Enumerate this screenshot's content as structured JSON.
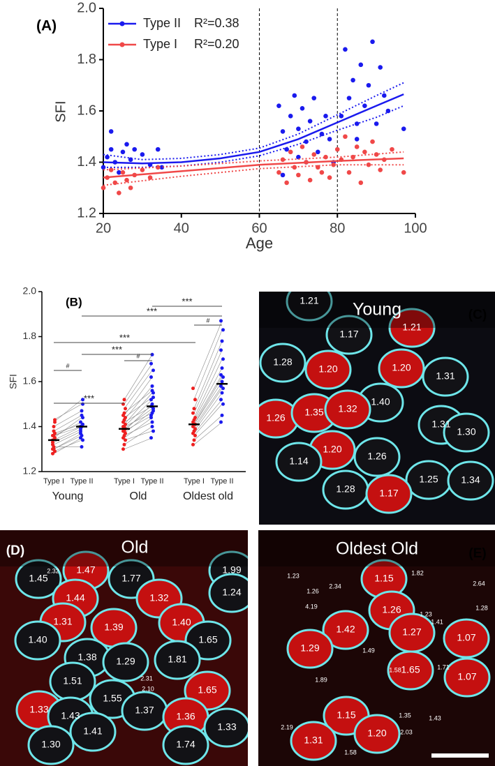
{
  "chart_data": [
    {
      "type": "scatter",
      "panel": "(A)",
      "xlabel": "Age",
      "ylabel": "SFI",
      "xlim": [
        20,
        100
      ],
      "ylim": [
        1.2,
        2.0
      ],
      "xticks": [
        20,
        40,
        60,
        80,
        100
      ],
      "yticks": [
        1.2,
        1.4,
        1.6,
        1.8,
        {
          "value": 2,
          "label": "2.0"
        }
      ],
      "vlines": [
        60,
        80
      ],
      "series": [
        {
          "name": "Type II",
          "annotation": "R²=0.38",
          "color": "#1a1aee",
          "x": [
            20,
            21,
            22,
            22,
            23,
            24,
            25,
            26,
            27,
            28,
            30,
            32,
            34,
            35,
            65,
            66,
            67,
            68,
            69,
            70,
            70,
            71,
            72,
            73,
            74,
            75,
            76,
            77,
            78,
            79,
            81,
            82,
            83,
            84,
            85,
            85,
            86,
            87,
            88,
            89,
            90,
            91,
            92,
            93,
            97,
            66,
            72
          ],
          "values": [
            1.38,
            1.42,
            1.52,
            1.45,
            1.4,
            1.36,
            1.44,
            1.47,
            1.41,
            1.45,
            1.43,
            1.39,
            1.45,
            1.38,
            1.62,
            1.52,
            1.45,
            1.58,
            1.66,
            1.42,
            1.53,
            1.61,
            1.48,
            1.56,
            1.65,
            1.44,
            1.51,
            1.58,
            1.49,
            1.4,
            1.58,
            1.84,
            1.65,
            1.72,
            1.55,
            1.49,
            1.78,
            1.62,
            1.7,
            1.87,
            1.55,
            1.77,
            1.66,
            1.6,
            1.53,
            1.35,
            1.4
          ]
        },
        {
          "name": "Type I",
          "annotation": "R²=0.20",
          "color": "#f04848",
          "x": [
            20,
            21,
            22,
            23,
            24,
            25,
            26,
            27,
            28,
            30,
            32,
            34,
            65,
            66,
            67,
            68,
            69,
            70,
            71,
            72,
            73,
            74,
            75,
            76,
            77,
            78,
            79,
            80,
            81,
            82,
            83,
            84,
            85,
            86,
            87,
            88,
            89,
            90,
            91,
            92,
            94,
            97
          ],
          "values": [
            1.3,
            1.34,
            1.37,
            1.32,
            1.28,
            1.36,
            1.33,
            1.3,
            1.35,
            1.37,
            1.34,
            1.38,
            1.36,
            1.41,
            1.32,
            1.44,
            1.38,
            1.35,
            1.46,
            1.4,
            1.33,
            1.43,
            1.38,
            1.36,
            1.42,
            1.34,
            1.39,
            1.45,
            1.41,
            1.5,
            1.36,
            1.42,
            1.46,
            1.32,
            1.44,
            1.39,
            1.48,
            1.43,
            1.37,
            1.41,
            1.45,
            1.36
          ]
        }
      ],
      "fits": [
        {
          "color": "#1a1aee",
          "x": [
            20,
            30,
            40,
            50,
            60,
            70,
            80,
            90,
            97
          ],
          "values": [
            1.4,
            1.395,
            1.4,
            1.415,
            1.44,
            1.49,
            1.555,
            1.62,
            1.665
          ],
          "lower": [
            1.38,
            1.38,
            1.385,
            1.4,
            1.425,
            1.47,
            1.525,
            1.575,
            1.62
          ],
          "upper": [
            1.43,
            1.41,
            1.415,
            1.43,
            1.455,
            1.51,
            1.585,
            1.66,
            1.71
          ]
        },
        {
          "color": "#f04848",
          "x": [
            20,
            40,
            60,
            80,
            97
          ],
          "values": [
            1.34,
            1.365,
            1.39,
            1.405,
            1.415
          ],
          "lower": [
            1.31,
            1.345,
            1.375,
            1.39,
            1.39
          ],
          "upper": [
            1.37,
            1.385,
            1.405,
            1.42,
            1.44
          ]
        }
      ]
    },
    {
      "type": "paired_dots",
      "panel": "(B)",
      "ylabel": "SFI",
      "ylim": [
        1.2,
        2.0
      ],
      "yticks": [
        1.2,
        1.4,
        1.6,
        1.8,
        {
          "value": 2,
          "label": "2.0"
        }
      ],
      "categories": [
        "Type I",
        "Type II",
        "Type I",
        "Type II",
        "Type I",
        "Type II"
      ],
      "groups": [
        "Young",
        "Old",
        "Oldest old"
      ],
      "columns": [
        {
          "color": "#ee2020",
          "mean": 1.34,
          "values": [
            1.34,
            1.3,
            1.29,
            1.36,
            1.38,
            1.42,
            1.32,
            1.31,
            1.35,
            1.33,
            1.4,
            1.37,
            1.28,
            1.36,
            1.43,
            1.3
          ]
        },
        {
          "color": "#1a1aee",
          "mean": 1.4,
          "values": [
            1.4,
            1.36,
            1.34,
            1.42,
            1.45,
            1.52,
            1.38,
            1.31,
            1.44,
            1.39,
            1.47,
            1.41,
            1.35,
            1.4,
            1.5,
            1.37
          ]
        },
        {
          "color": "#ee2020",
          "mean": 1.39,
          "values": [
            1.3,
            1.32,
            1.34,
            1.35,
            1.36,
            1.37,
            1.38,
            1.38,
            1.39,
            1.4,
            1.4,
            1.41,
            1.42,
            1.43,
            1.44,
            1.45,
            1.46,
            1.48,
            1.5,
            1.52
          ]
        },
        {
          "color": "#1a1aee",
          "mean": 1.49,
          "values": [
            1.35,
            1.4,
            1.38,
            1.44,
            1.42,
            1.47,
            1.45,
            1.5,
            1.48,
            1.52,
            1.46,
            1.55,
            1.49,
            1.58,
            1.53,
            1.62,
            1.56,
            1.65,
            1.68,
            1.72
          ]
        },
        {
          "color": "#ee2020",
          "mean": 1.41,
          "values": [
            1.32,
            1.34,
            1.36,
            1.37,
            1.38,
            1.39,
            1.4,
            1.41,
            1.41,
            1.42,
            1.43,
            1.44,
            1.46,
            1.48,
            1.52,
            1.57
          ]
        },
        {
          "color": "#1a1aee",
          "mean": 1.59,
          "values": [
            1.42,
            1.45,
            1.5,
            1.52,
            1.55,
            1.57,
            1.58,
            1.6,
            1.62,
            1.63,
            1.66,
            1.7,
            1.74,
            1.78,
            1.83,
            1.87
          ]
        }
      ],
      "annotations": [
        "#",
        "***",
        "#",
        "***",
        "***",
        "#",
        "***",
        "***"
      ]
    }
  ],
  "panels": [
    {
      "label": "(C)",
      "title": "Young",
      "values": [
        "1.21",
        "1.17",
        "1.21",
        "1.28",
        "1.20",
        "1.20",
        "1.31",
        "1.40",
        "1.26",
        "1.35",
        "1.32",
        "1.31",
        "1.30",
        "1.20",
        "1.14",
        "1.26",
        "1.28",
        "1.25",
        "1.34",
        "1.17"
      ]
    },
    {
      "label": "(D)",
      "title": "Old",
      "values": [
        "1.45",
        "2.32",
        "1.47",
        "1.77",
        "1.99",
        "1.44",
        "1.32",
        "1.24",
        "1.31",
        "1.39",
        "1.40",
        "1.65",
        "1.40",
        "1.38",
        "1.29",
        "1.81",
        "1.51",
        "2.31",
        "2.10",
        "1.55",
        "1.65",
        "1.33",
        "1.43",
        "1.37",
        "1.36",
        "1.33",
        "1.41",
        "1.30",
        "1.74"
      ]
    },
    {
      "label": "(E)",
      "title": "Oldest Old",
      "values": [
        "1.23",
        "1.15",
        "1.82",
        "1.26",
        "2.34",
        "2.64",
        "4.19",
        "1.26",
        "1.23",
        "1.28",
        "1.41",
        "1.42",
        "1.27",
        "1.07",
        "1.29",
        "1.49",
        "1.58",
        "1.65",
        "1.71",
        "1.07",
        "1.89",
        "1.15",
        "1.35",
        "1.43",
        "2.19",
        "1.20",
        "2.03",
        "1.31",
        "1.58"
      ]
    }
  ]
}
